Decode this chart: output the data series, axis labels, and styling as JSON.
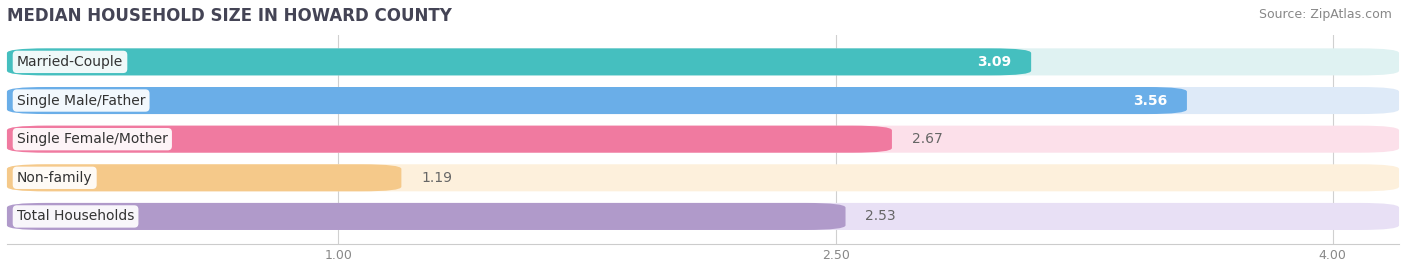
{
  "title": "MEDIAN HOUSEHOLD SIZE IN HOWARD COUNTY",
  "source": "Source: ZipAtlas.com",
  "categories": [
    "Married-Couple",
    "Single Male/Father",
    "Single Female/Mother",
    "Non-family",
    "Total Households"
  ],
  "values": [
    3.09,
    3.56,
    2.67,
    1.19,
    2.53
  ],
  "bar_colors": [
    "#45bfbf",
    "#6aaee8",
    "#f07aa0",
    "#f5c98a",
    "#b09aca"
  ],
  "bg_colors": [
    "#dff2f2",
    "#deeaf8",
    "#fce0ea",
    "#fdf0dc",
    "#e8e0f5"
  ],
  "value_inside": [
    true,
    true,
    false,
    false,
    false
  ],
  "xlim_left": 0.0,
  "xlim_right": 4.2,
  "xticks": [
    1.0,
    2.5,
    4.0
  ],
  "xtick_labels": [
    "1.00",
    "2.50",
    "4.00"
  ],
  "title_fontsize": 12,
  "source_fontsize": 9,
  "label_fontsize": 10,
  "value_fontsize": 10,
  "bar_sep": 0.04,
  "background_color": "#ffffff"
}
